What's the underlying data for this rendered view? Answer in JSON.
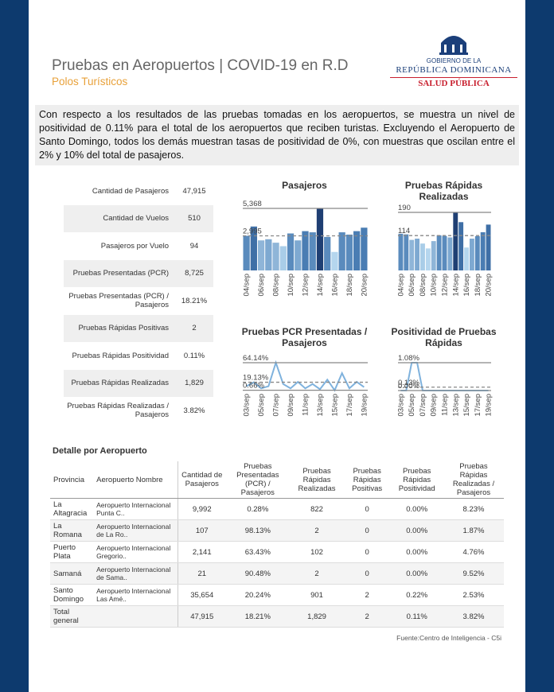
{
  "header": {
    "title": "Pruebas en Aeropuertos | COVID-19 en R.D",
    "subtitle": "Polos Turísticos",
    "logo": {
      "line1": "GOBIERNO DE LA",
      "line2": "REPÚBLICA DOMINICANA",
      "line3": "SALUD PÚBLICA"
    }
  },
  "summary": "Con respecto a los resultados de las pruebas tomadas en los aeropuertos, se muestra un nivel de positividad de 0.11% para el total de los aeropuertos que reciben turistas. Excluyendo el Aeropuerto de Santo Domingo, todos los demás muestran tasas de positividad de 0%, con muestras que oscilan entre el 2% y 10% del total de pasajeros.",
  "kpis": [
    [
      "Cantidad de Pasajeros",
      "47,915"
    ],
    [
      "Cantidad de Vuelos",
      "510"
    ],
    [
      "Pasajeros por Vuelo",
      "94"
    ],
    [
      "Pruebas Presentadas (PCR)",
      "8,725"
    ],
    [
      "Pruebas Presentadas (PCR) / Pasajeros",
      "18.21%"
    ],
    [
      "Pruebas Rápidas Positivas",
      "2"
    ],
    [
      "Pruebas Rápidas Positividad",
      "0.11%"
    ],
    [
      "Pruebas Rápidas Realizadas",
      "1,829"
    ],
    [
      "Pruebas Rápidas Realizadas / Pasajeros",
      "3.82%"
    ]
  ],
  "chart_data": [
    {
      "type": "bar",
      "title": "Pasajeros",
      "categories": [
        "04/sep",
        null,
        "06/sep",
        null,
        "08/sep",
        null,
        "10/sep",
        null,
        "12/sep",
        null,
        "14/sep",
        null,
        "16/sep",
        null,
        "18/sep",
        null,
        "20/sep"
      ],
      "values": [
        3000,
        3800,
        2600,
        2700,
        2400,
        2100,
        3200,
        2600,
        3400,
        3300,
        5368,
        2900,
        1600,
        3300,
        3100,
        3400,
        3700
      ],
      "colors": [
        "#5a8bbd",
        "#3f6fa6",
        "#8fb5d8",
        "#7ea9d1",
        "#8fb5d8",
        "#a9cde8",
        "#5a8bbd",
        "#7ea9d1",
        "#4a7db3",
        "#5a8bbd",
        "#1f3f73",
        "#5a8bbd",
        "#b5d6ee",
        "#5a8bbd",
        "#5a8bbd",
        "#4a7db3",
        "#4a7db3"
      ],
      "ylim": [
        0,
        5368
      ],
      "reference_lines": [
        {
          "value": 5368,
          "label": "5,368",
          "style": "solid"
        },
        {
          "value": 2995,
          "label": "2,995",
          "style": "dashed"
        }
      ]
    },
    {
      "type": "bar",
      "title": "Pruebas Rápidas Realizadas",
      "categories": [
        "04/sep",
        null,
        "06/sep",
        null,
        "08/sep",
        null,
        "10/sep",
        null,
        "12/sep",
        null,
        "14/sep",
        null,
        "16/sep",
        null,
        "18/sep",
        null,
        "20/sep"
      ],
      "values": [
        120,
        118,
        100,
        104,
        88,
        72,
        96,
        115,
        113,
        108,
        190,
        158,
        75,
        104,
        112,
        125,
        150
      ],
      "colors": [
        "#5a8bbd",
        "#5a8bbd",
        "#8fb5d8",
        "#7ea9d1",
        "#a9cde8",
        "#b5d6ee",
        "#8fb5d8",
        "#5a8bbd",
        "#5a8bbd",
        "#7ea9d1",
        "#1f3f73",
        "#3f6fa6",
        "#b5d6ee",
        "#7ea9d1",
        "#5a8bbd",
        "#4a7db3",
        "#3f6fa6"
      ],
      "ylim": [
        0,
        190
      ],
      "reference_lines": [
        {
          "value": 190,
          "label": "190",
          "style": "solid"
        },
        {
          "value": 114,
          "label": "114",
          "style": "dashed"
        }
      ]
    },
    {
      "type": "line",
      "title": "Pruebas PCR Presentadas / Pasajeros",
      "categories": [
        "03/sep",
        null,
        "05/sep",
        null,
        "07/sep",
        null,
        "09/sep",
        null,
        "11/sep",
        null,
        "13/sep",
        null,
        "15/sep",
        null,
        "17/sep",
        null,
        "19/sep"
      ],
      "values": [
        10,
        19,
        5,
        10,
        64.14,
        15,
        5,
        20,
        5,
        15,
        3,
        25,
        0.66,
        40,
        5,
        20,
        8
      ],
      "color": "#7fb2dd",
      "ylim": [
        0,
        64.14
      ],
      "reference_lines": [
        {
          "value": 64.14,
          "label": "64.14%",
          "style": "solid"
        },
        {
          "value": 19.13,
          "label": "19.13%",
          "style": "dashed"
        },
        {
          "value": 0.66,
          "label": "0.66%",
          "style": "solid"
        }
      ]
    },
    {
      "type": "line",
      "title": "Positividad de Pruebas Rápidas",
      "categories": [
        "03/sep",
        null,
        "05/sep",
        null,
        "07/sep",
        null,
        "09/sep",
        null,
        "11/sep",
        null,
        "13/sep",
        null,
        "15/sep",
        null,
        "17/sep",
        null,
        "19/sep"
      ],
      "values": [
        0,
        0,
        1.08,
        1.08,
        0,
        0,
        0,
        0,
        0,
        0,
        0,
        0,
        0,
        0,
        0,
        0,
        0
      ],
      "color": "#7fb2dd",
      "ylim": [
        0,
        1.08
      ],
      "reference_lines": [
        {
          "value": 1.08,
          "label": "1.08%",
          "style": "solid"
        },
        {
          "value": 0.13,
          "label": "0.13%",
          "style": "dashed"
        },
        {
          "value": 0,
          "label": "0.00%",
          "style": "solid"
        }
      ]
    }
  ],
  "table": {
    "title": "Detalle por Aeropuerto",
    "columns": [
      "Provincia",
      "Aeropuerto Nombre",
      "Cantidad de Pasajeros",
      "Pruebas Presentadas (PCR) / Pasajeros",
      "Pruebas Rápidas Realizadas",
      "Pruebas Rápidas Positivas",
      "Pruebas Rápidas Positividad",
      "Pruebas Rápidas Realizadas / Pasajeros"
    ],
    "rows": [
      [
        "La Altagracia",
        "Aeropuerto Internacional Punta C..",
        "9,992",
        "0.28%",
        "822",
        "0",
        "0.00%",
        "8.23%"
      ],
      [
        "La Romana",
        "Aeropuerto Internacional de La Ro..",
        "107",
        "98.13%",
        "2",
        "0",
        "0.00%",
        "1.87%"
      ],
      [
        "Puerto Plata",
        "Aeropuerto Internacional Gregorio..",
        "2,141",
        "63.43%",
        "102",
        "0",
        "0.00%",
        "4.76%"
      ],
      [
        "Samaná",
        "Aeropuerto Internacional de Sama..",
        "21",
        "90.48%",
        "2",
        "0",
        "0.00%",
        "9.52%"
      ],
      [
        "Santo Domingo",
        "Aeropuerto Internacional Las Amé..",
        "35,654",
        "20.24%",
        "901",
        "2",
        "0.22%",
        "2.53%"
      ],
      [
        "Total general",
        "",
        "47,915",
        "18.21%",
        "1,829",
        "2",
        "0.11%",
        "3.82%"
      ]
    ]
  },
  "source": "Fuente:Centro de Inteligencia - C5i"
}
